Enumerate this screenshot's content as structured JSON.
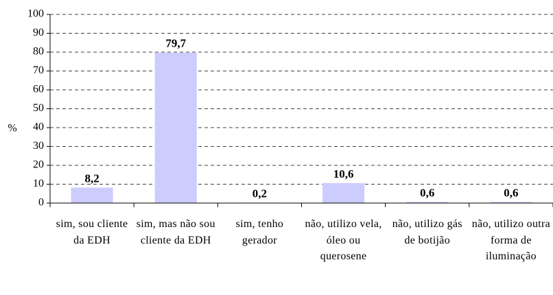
{
  "chart_data": {
    "type": "bar",
    "y_label": "%",
    "categories": [
      "sim, sou cliente da EDH",
      "sim, mas não sou cliente da EDH",
      "sim, tenho gerador",
      "não, utilizo vela, óleo ou querosene",
      "não, utilizo gás de botijão",
      "não, utilizo outra forma de iluminação"
    ],
    "values": [
      8.2,
      79.7,
      0.2,
      10.6,
      0.6,
      0.6
    ],
    "value_labels": [
      "8,2",
      "79,7",
      "0,2",
      "10,6",
      "0,6",
      "0,6"
    ],
    "color": "#ccccff",
    "ylim": [
      0,
      100
    ],
    "yticks": [
      0,
      10,
      20,
      30,
      40,
      50,
      60,
      70,
      80,
      90,
      100
    ],
    "grid": true
  }
}
